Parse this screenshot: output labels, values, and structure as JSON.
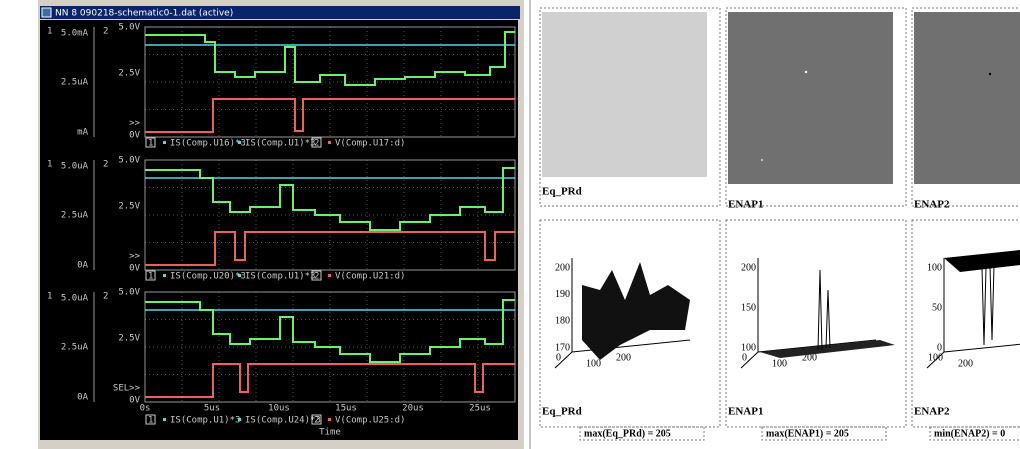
{
  "window": {
    "title": "NN 8 090218-schematic0-1.dat (active)"
  },
  "plots": [
    {
      "axis1": [
        "5.0mA",
        "2.5uA",
        "mA"
      ],
      "axis2": [
        "5.0V",
        "2.5V",
        ">>",
        "0V"
      ],
      "axis1_id": "1",
      "axis2_id": "2",
      "legend": [
        "IS(Comp.U16)*3",
        "IS(Comp.U1)*3",
        "V(Comp.U17:d)"
      ]
    },
    {
      "axis1": [
        "5.0uA",
        "2.5uA",
        "0A"
      ],
      "axis2": [
        "5.0V",
        "2.5V",
        ">>",
        "0V"
      ],
      "axis1_id": "1",
      "axis2_id": "2",
      "legend": [
        "IS(Comp.U20)*3",
        "IS(Comp.U1)*3",
        "V(Comp.U21:d)"
      ]
    },
    {
      "axis1": [
        "5.0uA",
        "2.5uA",
        "0A"
      ],
      "axis2": [
        "5.0V",
        "2.5V",
        "SEL>>",
        "0V"
      ],
      "axis1_id": "1",
      "axis2_id": "2",
      "legend": [
        "IS(Comp.U1)*3",
        "IS(Comp.U24)*3",
        "V(Comp.U25:d)"
      ]
    }
  ],
  "time_axis": {
    "ticks": [
      "0s",
      "5us",
      "10us",
      "15us",
      "20us",
      "25us"
    ],
    "label": "Time"
  },
  "mathcad": {
    "images": [
      "Eq_PRd",
      "ENAP1",
      "ENAP2"
    ],
    "surfaces": [
      {
        "label": "Eq_PRd",
        "zticks": [
          "200",
          "190",
          "180",
          "170"
        ],
        "xticks": [
          "0",
          "100",
          "200"
        ]
      },
      {
        "label": "ENAP1",
        "zticks": [
          "200",
          "150",
          "100"
        ],
        "xticks": [
          "0",
          "100",
          "200"
        ]
      },
      {
        "label": "ENAP2",
        "zticks": [
          "100",
          "50",
          "0"
        ],
        "xticks": [
          "100",
          "200"
        ]
      }
    ],
    "results": [
      "max(Eq_PRd) = 205",
      "max(ENAP1) = 205",
      "min(ENAP2) = 0"
    ]
  }
}
